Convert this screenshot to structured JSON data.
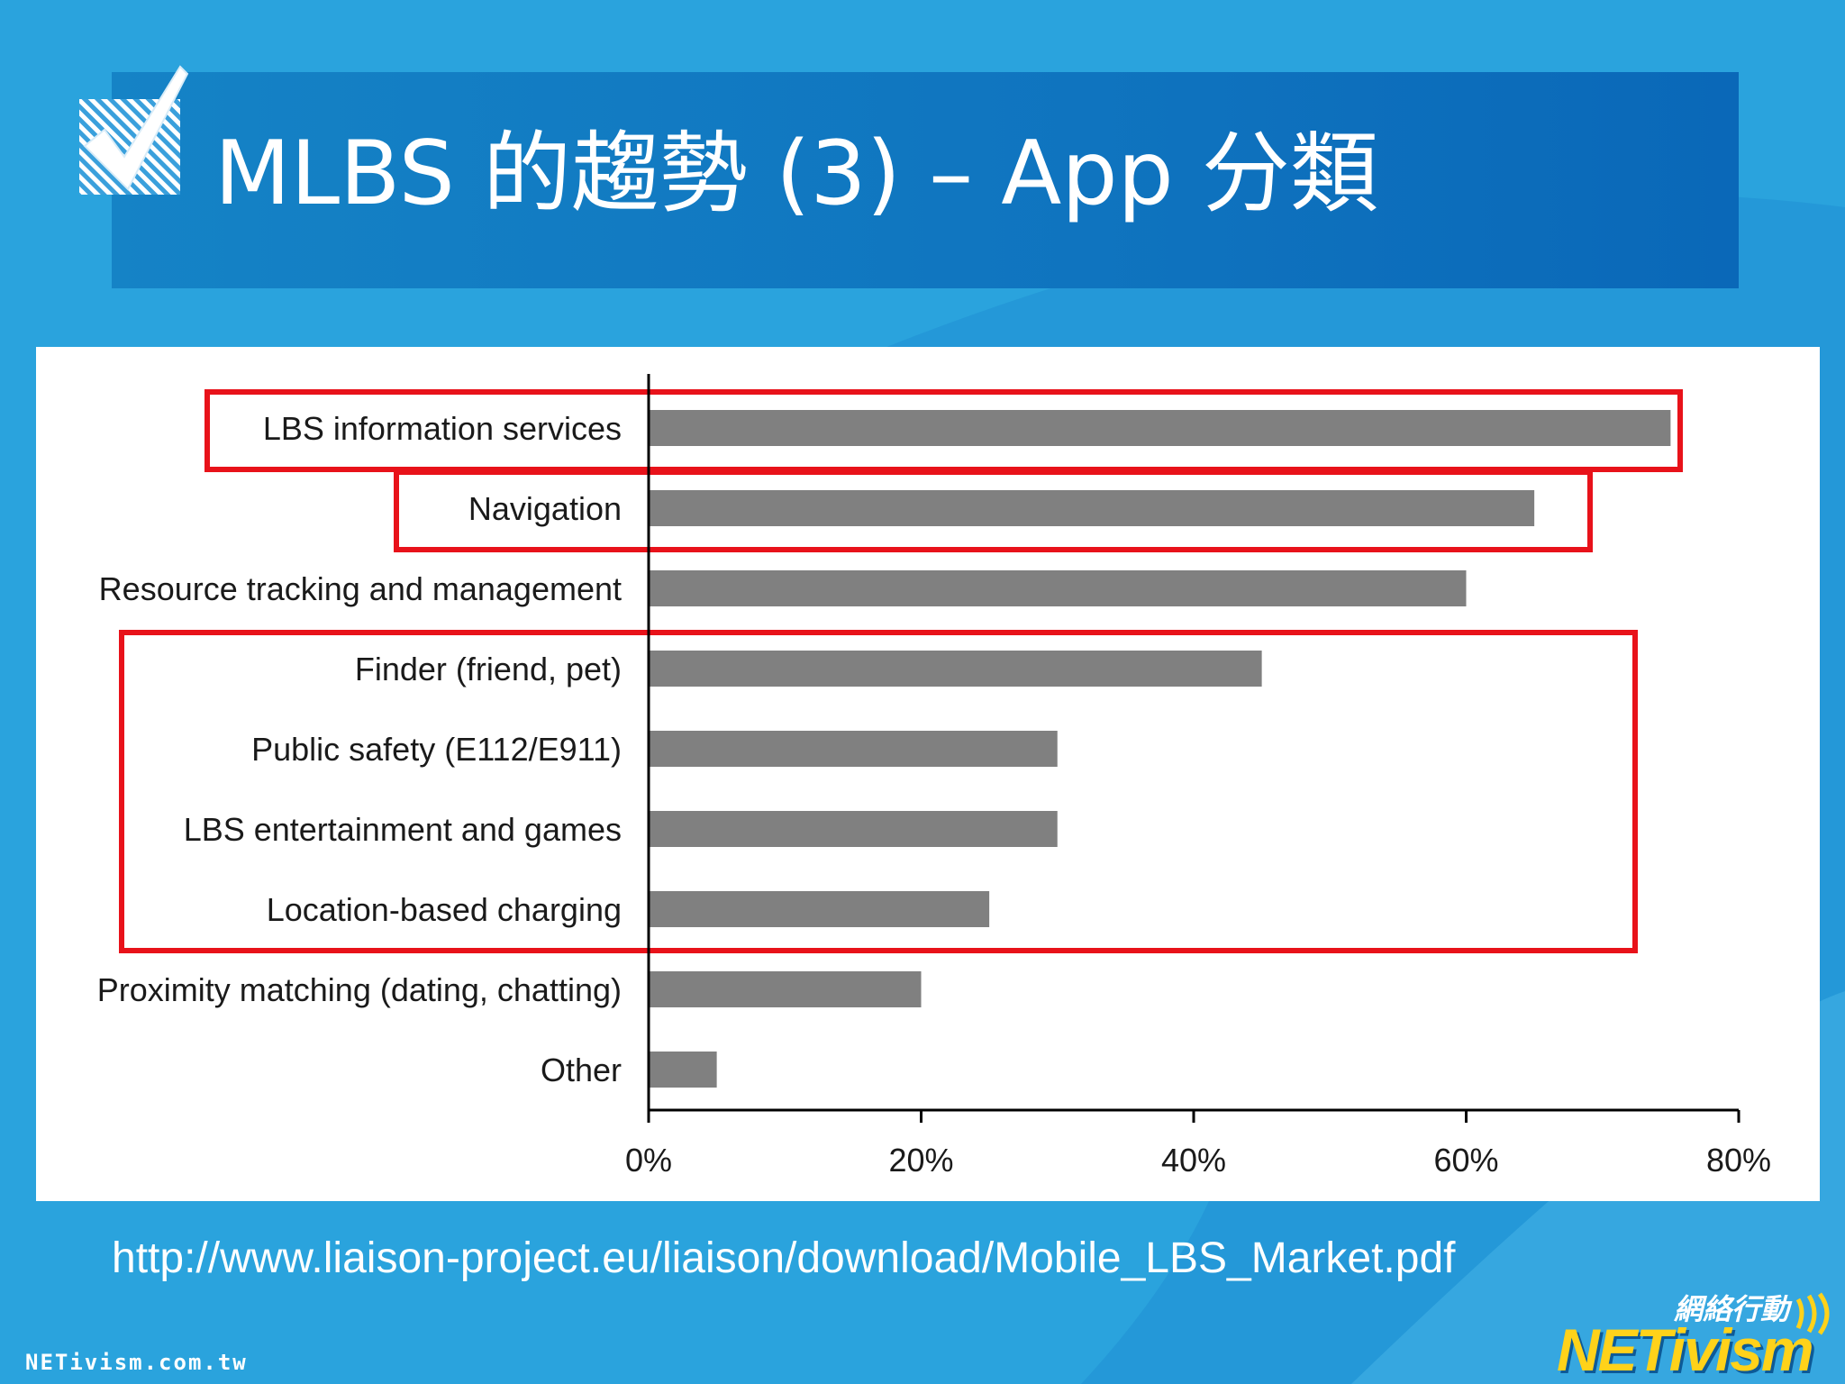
{
  "slide": {
    "title": "MLBS 的趨勢 (3) – App 分類",
    "source_url": "http://www.liaison-project.eu/liaison/download/Mobile_LBS_Market.pdf",
    "footer_domain": "NETivism.com.tw",
    "logo_cn": "網絡行動",
    "logo_main": "NETivism"
  },
  "colors": {
    "background": "#2aa3dd",
    "title_band": "#1583c6",
    "bar": "#808080",
    "highlight_box": "#e8121a",
    "logo_yellow": "#ffd21a"
  },
  "icons": {
    "bullet": "checkmark-icon",
    "logo": "netivism-logo"
  },
  "chart_data": {
    "type": "bar",
    "orientation": "horizontal",
    "title": "",
    "xlabel": "",
    "ylabel": "",
    "xlim": [
      0,
      80
    ],
    "x_ticks": [
      "0%",
      "20%",
      "40%",
      "60%",
      "80%"
    ],
    "grid": false,
    "legend": "none",
    "categories": [
      "LBS information services",
      "Navigation",
      "Resource tracking and management",
      "Finder (friend, pet)",
      "Public safety (E112/E911)",
      "LBS entertainment and games",
      "Location-based charging",
      "Proximity matching (dating, chatting)",
      "Other"
    ],
    "values": [
      75,
      65,
      60,
      45,
      30,
      30,
      25,
      20,
      5
    ],
    "highlight_groups": [
      [
        "LBS information services"
      ],
      [
        "Navigation"
      ],
      [
        "Finder (friend, pet)",
        "Public safety (E112/E911)",
        "LBS entertainment and games",
        "Location-based charging"
      ]
    ]
  }
}
